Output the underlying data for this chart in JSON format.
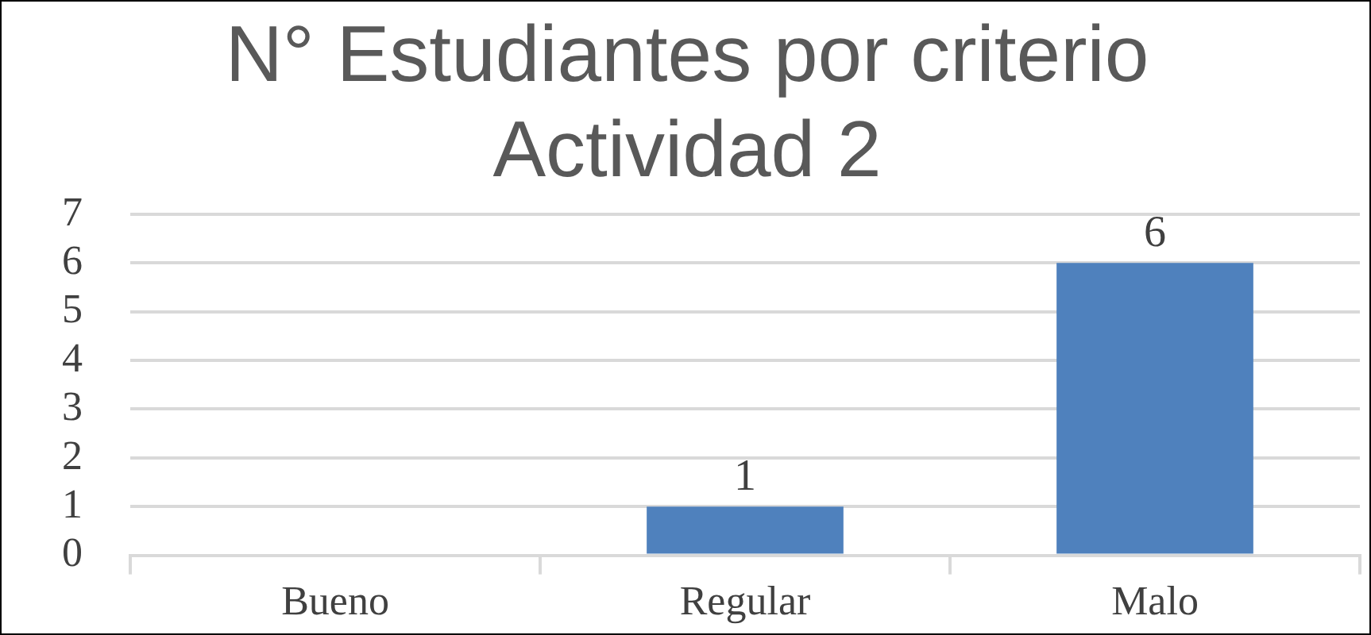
{
  "chart_data": {
    "type": "bar",
    "title": "N° Estudiantes por criterio Actividad 2",
    "categories": [
      "Bueno",
      "Regular",
      "Malo"
    ],
    "values": [
      0,
      1,
      6
    ],
    "color": "#4f81bd",
    "value_labels": [
      null,
      "1",
      "6"
    ],
    "ylim": [
      0,
      7
    ],
    "yticks": [
      0,
      1,
      2,
      3,
      4,
      5,
      6,
      7
    ],
    "grid": "y",
    "legend": false
  }
}
